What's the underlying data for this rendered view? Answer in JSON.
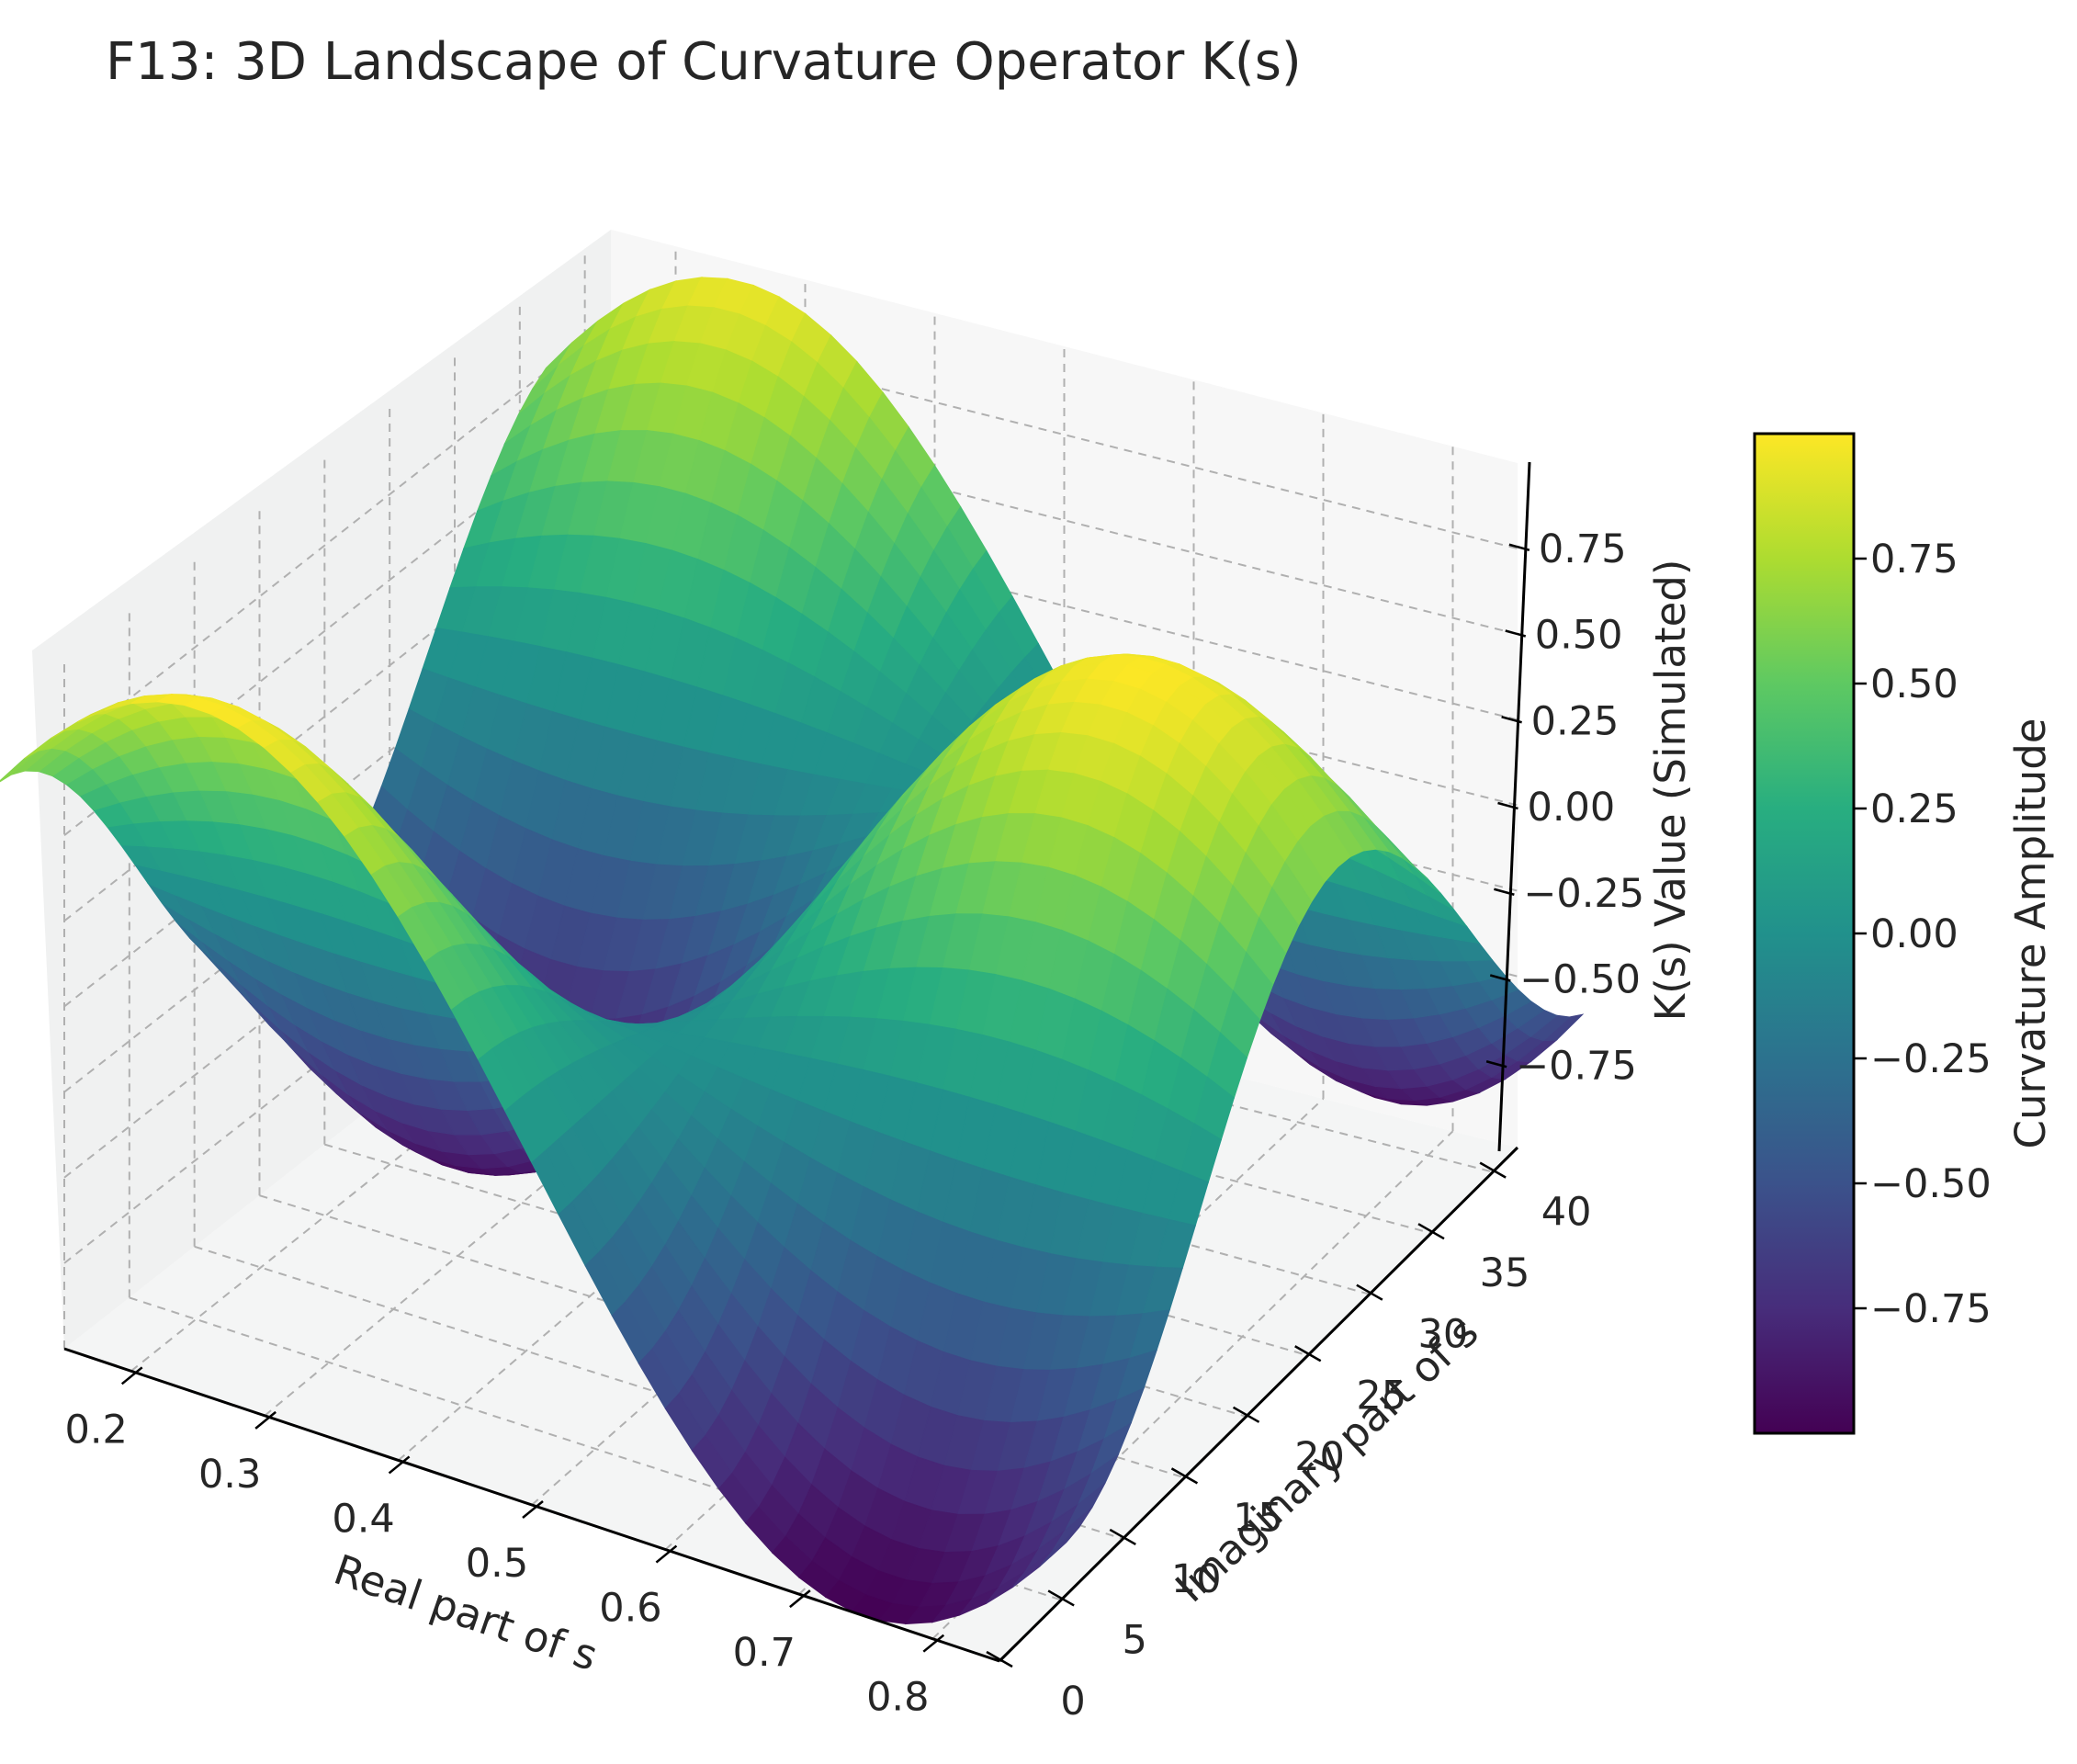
{
  "chart_data": {
    "type": "surface3d",
    "title": "F13: 3D Landscape of Curvature Operator K(s)",
    "xlabel": "Real part of s",
    "ylabel": "Imaginary part of s",
    "zlabel": "K(s) Value (Simulated)",
    "colorbar_label": "Curvature Amplitude",
    "colormap": "viridis",
    "xlim": [
      0.15,
      0.85
    ],
    "ylim": [
      0,
      42
    ],
    "zlim": [
      -1,
      1
    ],
    "x_ticks": [
      "0.2",
      "0.3",
      "0.4",
      "0.5",
      "0.6",
      "0.7",
      "0.8"
    ],
    "y_ticks": [
      "0",
      "5",
      "10",
      "15",
      "20",
      "25",
      "30",
      "35",
      "40"
    ],
    "z_ticks": [
      "−0.75",
      "−0.50",
      "−0.25",
      "0.00",
      "0.25",
      "0.50",
      "0.75"
    ],
    "colorbar_ticks": [
      "−0.75",
      "−0.50",
      "−0.25",
      "0.00",
      "0.25",
      "0.50",
      "0.75"
    ],
    "grid": true,
    "surface": {
      "function": "sin(2*pi*x) * cos(y/7)",
      "x_range": [
        0.1,
        0.9
      ],
      "y_range": [
        0,
        42
      ],
      "samples_x": 40,
      "samples_y": 40
    },
    "value_range": [
      -1,
      1
    ]
  }
}
